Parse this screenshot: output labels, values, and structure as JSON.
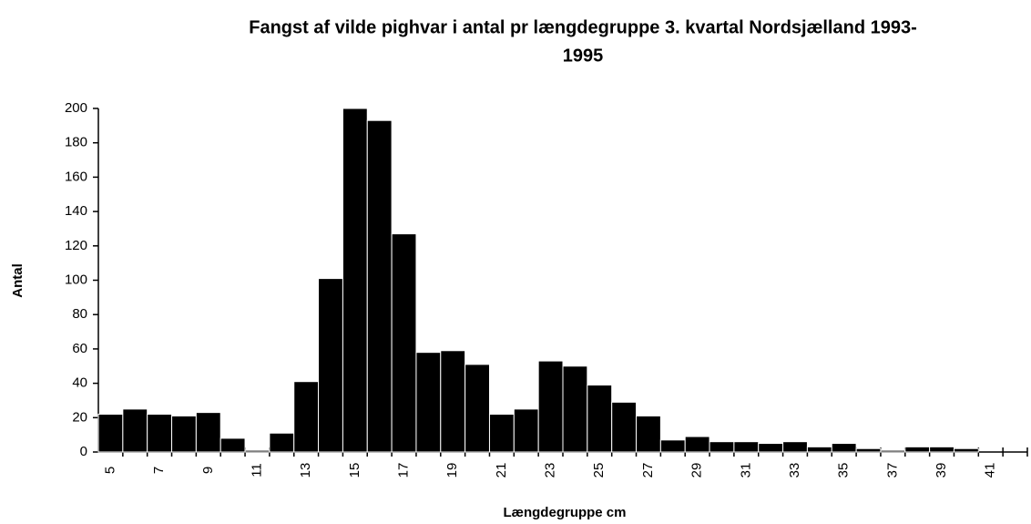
{
  "chart_data": {
    "type": "bar",
    "title": [
      "Fangst af vilde pighvar i antal pr længdegruppe  3. kvartal  Nordsjælland   1993-",
      "1995"
    ],
    "xlabel": "Længdegruppe cm",
    "ylabel": "Antal",
    "categories": [
      "5",
      null,
      "7",
      null,
      "9",
      null,
      "11",
      null,
      "13",
      null,
      "15",
      null,
      "17",
      null,
      "19",
      null,
      "21",
      null,
      "23",
      null,
      "25",
      null,
      "27",
      null,
      "29",
      null,
      "31",
      null,
      "33",
      null,
      "35",
      null,
      "37",
      null,
      "39",
      null,
      "41",
      null
    ],
    "values": [
      22,
      25,
      22,
      21,
      23,
      8,
      1,
      11,
      41,
      101,
      200,
      193,
      127,
      58,
      59,
      51,
      22,
      25,
      53,
      50,
      39,
      29,
      21,
      7,
      9,
      6,
      6,
      5,
      6,
      3,
      5,
      2,
      1,
      3,
      3,
      2,
      null,
      null
    ],
    "color": "#000000",
    "ylim": [
      0,
      200
    ],
    "yticks": [
      0,
      20,
      40,
      60,
      80,
      100,
      120,
      140,
      160,
      180,
      200
    ],
    "grid": false
  }
}
